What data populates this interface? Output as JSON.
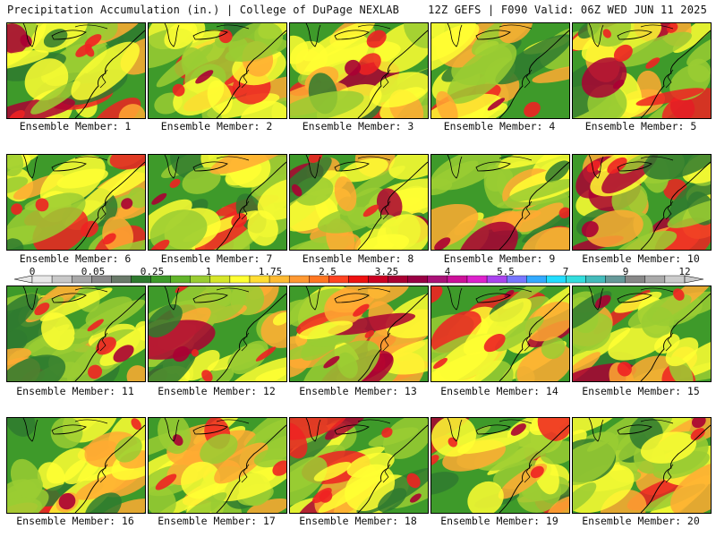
{
  "header": {
    "left_title": "Precipitation Accumulation (in.) | College of DuPage NEXLAB",
    "right_title": "12Z GEFS | F090 Valid: 06Z WED JUN 11 2025"
  },
  "panels": [
    {
      "member": 1,
      "label": "Ensemble Member: 1"
    },
    {
      "member": 2,
      "label": "Ensemble Member: 2"
    },
    {
      "member": 3,
      "label": "Ensemble Member: 3"
    },
    {
      "member": 4,
      "label": "Ensemble Member: 4"
    },
    {
      "member": 5,
      "label": "Ensemble Member: 5"
    },
    {
      "member": 6,
      "label": "Ensemble Member: 6"
    },
    {
      "member": 7,
      "label": "Ensemble Member: 7"
    },
    {
      "member": 8,
      "label": "Ensemble Member: 8"
    },
    {
      "member": 9,
      "label": "Ensemble Member: 9"
    },
    {
      "member": 10,
      "label": "Ensemble Member: 10"
    },
    {
      "member": 11,
      "label": "Ensemble Member: 11"
    },
    {
      "member": 12,
      "label": "Ensemble Member: 12"
    },
    {
      "member": 13,
      "label": "Ensemble Member: 13"
    },
    {
      "member": 14,
      "label": "Ensemble Member: 14"
    },
    {
      "member": 15,
      "label": "Ensemble Member: 15"
    },
    {
      "member": 16,
      "label": "Ensemble Member: 16"
    },
    {
      "member": 17,
      "label": "Ensemble Member: 17"
    },
    {
      "member": 18,
      "label": "Ensemble Member: 18"
    },
    {
      "member": 19,
      "label": "Ensemble Member: 19"
    },
    {
      "member": 20,
      "label": "Ensemble Member: 20"
    }
  ],
  "colorbar": {
    "labels": [
      "0",
      "0.05",
      "0.25",
      "1",
      "1.75",
      "2.5",
      "3.25",
      "4",
      "5.5",
      "7",
      "9",
      "12"
    ],
    "colors": [
      "#e8e8e8",
      "#c8c8c8",
      "#a8a8a8",
      "#8a8a8a",
      "#6a7a6a",
      "#2f7a2f",
      "#3e9a2a",
      "#62b52a",
      "#9acd32",
      "#d6e62a",
      "#ffff33",
      "#ffdd33",
      "#ffbb33",
      "#ff9933",
      "#ff7722",
      "#ff4422",
      "#ee1111",
      "#cc0022",
      "#aa0033",
      "#990044",
      "#aa1177",
      "#cc1199",
      "#dd22cc",
      "#aa44ee",
      "#7777ff",
      "#33aaff",
      "#22ddff",
      "#33dddd",
      "#44bbbb",
      "#669999",
      "#888888",
      "#aaaaaa",
      "#cccccc"
    ]
  },
  "map_colors": {
    "green_dark": "#2f7a2f",
    "green": "#3e9a2a",
    "yellow_green": "#9acd32",
    "yellow": "#ffff33",
    "orange": "#ffaa33",
    "red": "#ee2222",
    "dark_red": "#aa0033",
    "magenta": "#cc1199"
  }
}
